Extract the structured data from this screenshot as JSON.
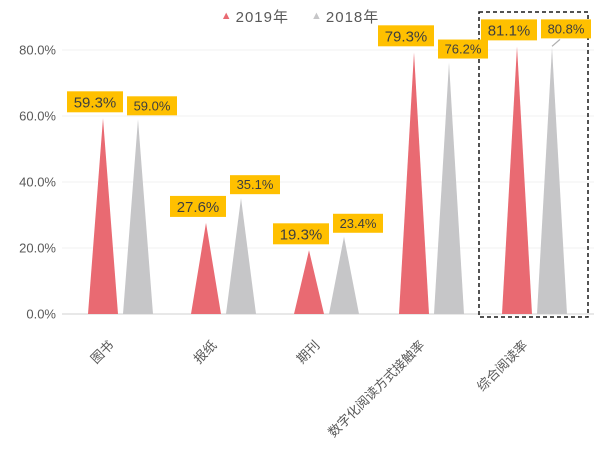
{
  "chart_data": {
    "type": "bar",
    "shape": "triangle",
    "title": "",
    "xlabel": "",
    "ylabel": "",
    "grid": true,
    "legend_position": "top",
    "categories": [
      "图书",
      "报纸",
      "期刊",
      "数字化阅读方式接触率",
      "综合阅读率"
    ],
    "series": [
      {
        "name": "2019年",
        "color": "#E96A72",
        "values": [
          59.3,
          27.6,
          19.3,
          79.3,
          81.1
        ]
      },
      {
        "name": "2018年",
        "color": "#C6C6C8",
        "values": [
          59.0,
          35.1,
          23.4,
          76.2,
          80.8
        ]
      }
    ],
    "data_labels": {
      "series_2019": [
        "59.3%",
        "27.6%",
        "19.3%",
        "79.3%",
        "81.1%"
      ],
      "series_2018": [
        "59.0%",
        "35.1%",
        "23.4%",
        "76.2%",
        "80.8%"
      ],
      "background": "#FFC000",
      "text_color": "#3F3F3F"
    },
    "y_axis": {
      "ticks": [
        {
          "label": "0.0%",
          "value": 0
        },
        {
          "label": "20.0%",
          "value": 20
        },
        {
          "label": "40.0%",
          "value": 40
        },
        {
          "label": "60.0%",
          "value": 60
        },
        {
          "label": "80.0%",
          "value": 80
        }
      ],
      "ylim": [
        0,
        88
      ],
      "tick_color": "#595959"
    },
    "x_axis": {
      "label_color": "#595959",
      "label_rotation_deg": -45
    },
    "highlight": {
      "category": "综合阅读率",
      "style": "dashed-box",
      "border_color": "#1a1a1a"
    },
    "colors": {
      "gridline": "#F1F1F1",
      "axis_line": "#D9D9D9",
      "background": "#FFFFFF"
    }
  }
}
